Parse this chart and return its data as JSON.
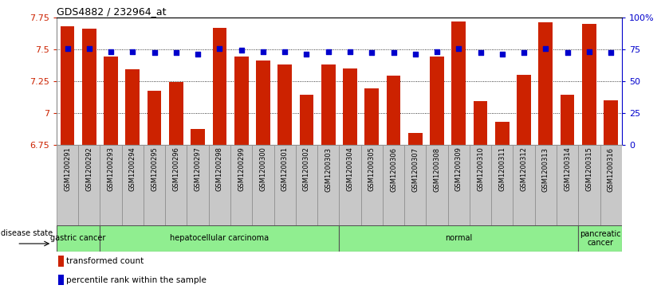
{
  "title": "GDS4882 / 232964_at",
  "samples": [
    "GSM1200291",
    "GSM1200292",
    "GSM1200293",
    "GSM1200294",
    "GSM1200295",
    "GSM1200296",
    "GSM1200297",
    "GSM1200298",
    "GSM1200299",
    "GSM1200300",
    "GSM1200301",
    "GSM1200302",
    "GSM1200303",
    "GSM1200304",
    "GSM1200305",
    "GSM1200306",
    "GSM1200307",
    "GSM1200308",
    "GSM1200309",
    "GSM1200310",
    "GSM1200311",
    "GSM1200312",
    "GSM1200313",
    "GSM1200314",
    "GSM1200315",
    "GSM1200316"
  ],
  "bar_values": [
    7.68,
    7.66,
    7.44,
    7.34,
    7.17,
    7.24,
    6.87,
    7.67,
    7.44,
    7.41,
    7.38,
    7.14,
    7.38,
    7.35,
    7.19,
    7.29,
    6.84,
    7.44,
    7.72,
    7.09,
    6.93,
    7.3,
    7.71,
    7.14,
    7.7,
    7.1
  ],
  "percentile_values": [
    7.505,
    7.505,
    7.482,
    7.482,
    7.471,
    7.471,
    7.46,
    7.505,
    7.494,
    7.482,
    7.482,
    7.46,
    7.482,
    7.482,
    7.471,
    7.471,
    7.46,
    7.482,
    7.505,
    7.471,
    7.46,
    7.471,
    7.505,
    7.471,
    7.482,
    7.471
  ],
  "ylim": [
    6.75,
    7.75
  ],
  "yticks_left": [
    6.75,
    7.0,
    7.25,
    7.5,
    7.75
  ],
  "ytick_labels_left": [
    "6.75",
    "7",
    "7.25",
    "7.5",
    "7.75"
  ],
  "right_yticks_pct": [
    0,
    25,
    50,
    75,
    100
  ],
  "bar_color": "#cc2200",
  "percentile_color": "#0000cc",
  "group_boundaries": [
    {
      "label": "gastric cancer",
      "start": 0,
      "end": 2
    },
    {
      "label": "hepatocellular carcinoma",
      "start": 2,
      "end": 13
    },
    {
      "label": "normal",
      "start": 13,
      "end": 24
    },
    {
      "label": "pancreatic\ncancer",
      "start": 24,
      "end": 26
    }
  ],
  "disease_label": "disease state",
  "legend_bar_label": "transformed count",
  "legend_pct_label": "percentile rank within the sample",
  "bar_color_red": "#cc2200",
  "pct_color_blue": "#0000cc",
  "bar_width": 0.65,
  "green_color": "#90ee90",
  "gray_tick_bg": "#c8c8c8"
}
